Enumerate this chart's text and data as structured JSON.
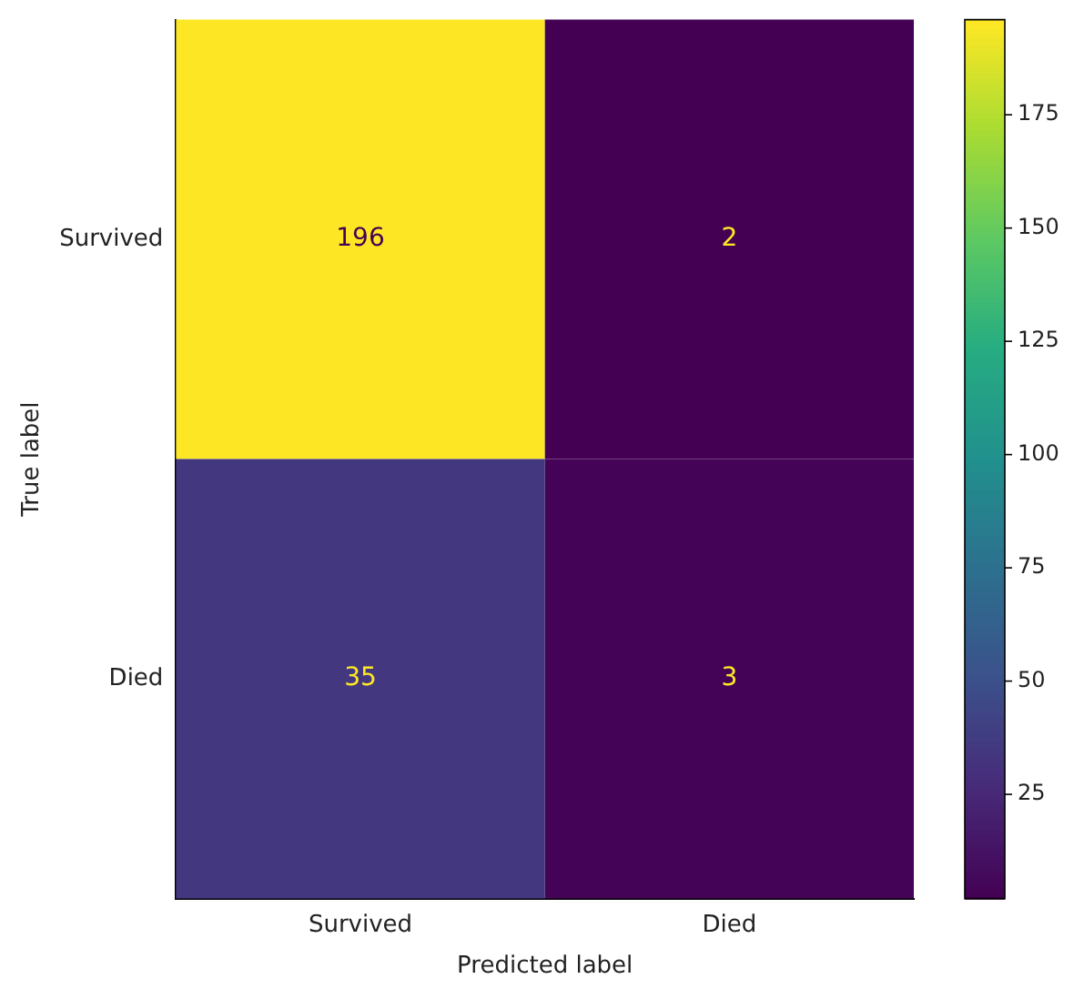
{
  "chart_data": {
    "type": "heatmap",
    "xlabel": "Predicted label",
    "ylabel": "True label",
    "categories": [
      "Survived",
      "Died"
    ],
    "y_categories": [
      "Survived",
      "Died"
    ],
    "cells": [
      [
        196,
        2
      ],
      [
        35,
        3
      ]
    ],
    "clim": [
      2,
      196
    ],
    "cticks": [
      25,
      50,
      75,
      100,
      125,
      150,
      175
    ],
    "data_labels": true
  }
}
